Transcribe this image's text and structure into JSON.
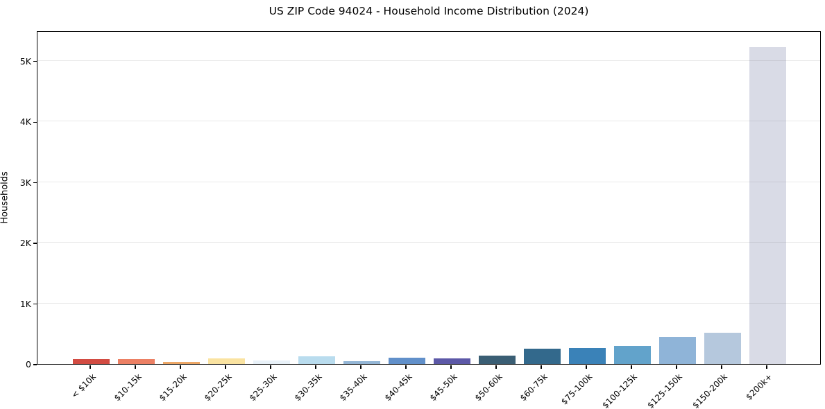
{
  "chart_data": {
    "type": "bar",
    "title": "US ZIP Code 94024 - Household Income Distribution (2024)",
    "xlabel": "",
    "ylabel": "Households",
    "categories": [
      "< $10k",
      "$10-15k",
      "$15-20k",
      "$20-25k",
      "$25-30k",
      "$30-35k",
      "$35-40k",
      "$40-45k",
      "$45-50k",
      "$50-60k",
      "$60-75k",
      "$75-100k",
      "$100-125k",
      "$125-150k",
      "$150-200k",
      "$200k+"
    ],
    "values": [
      80,
      75,
      30,
      90,
      55,
      125,
      45,
      105,
      90,
      140,
      250,
      265,
      300,
      450,
      510,
      5230
    ],
    "bar_colors": [
      "#d24b42",
      "#ec8064",
      "#eda766",
      "#fae3a1",
      "#e8f1f8",
      "#b9dcee",
      "#94b6d6",
      "#6190ca",
      "#5c58a7",
      "#3a5e74",
      "#33698c",
      "#3a82b8",
      "#62a3cb",
      "#8fb4d8",
      "#b5c8dd",
      "#d9dbe6"
    ],
    "ytick_labels": [
      "0",
      "1K",
      "2K",
      "3K",
      "4K",
      "5K"
    ],
    "ytick_values": [
      0,
      1000,
      2000,
      3000,
      4000,
      5000
    ],
    "ylim": [
      0,
      5500
    ],
    "grid": "horizontal-only",
    "legend": "none",
    "axis_color": "#000000",
    "background_color": "#ffffff"
  }
}
